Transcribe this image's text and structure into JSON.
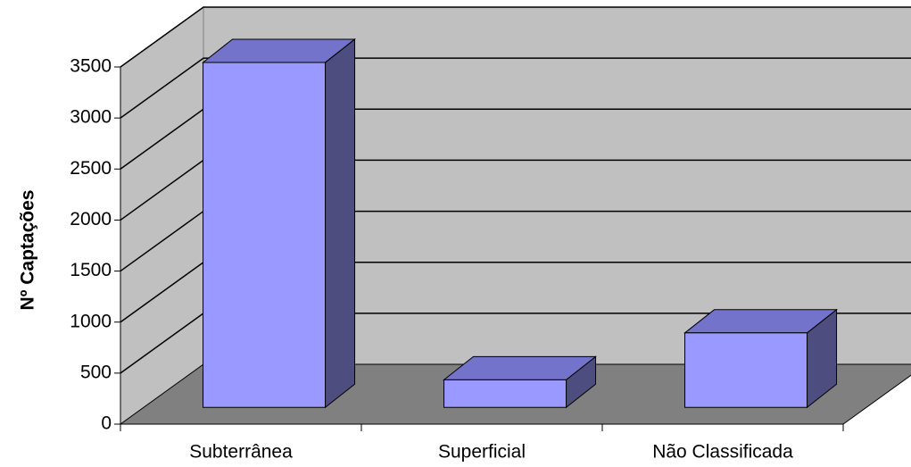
{
  "chart_data": {
    "type": "bar",
    "y_label": "Nº Captações",
    "categories": [
      "Subterrânea",
      "Superficial",
      "Não Classificada"
    ],
    "values": [
      3380,
      270,
      730
    ],
    "color": "#9999ff",
    "ylim": [
      0,
      3500
    ],
    "yticks": [
      0,
      500,
      1000,
      1500,
      2000,
      2500,
      3000,
      3500
    ],
    "grid": true
  }
}
